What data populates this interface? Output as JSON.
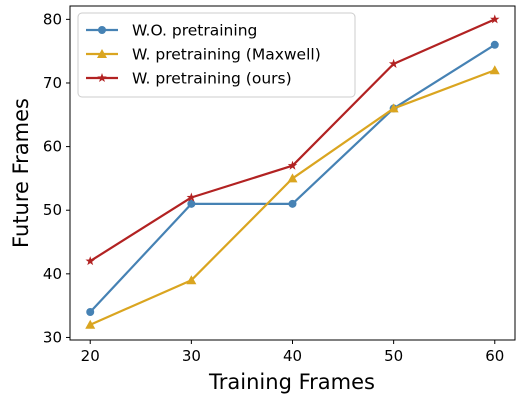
{
  "chart_data": {
    "type": "line",
    "title": "",
    "xlabel": "Training Frames",
    "ylabel": "Future Frames",
    "x": [
      20,
      30,
      40,
      50,
      60
    ],
    "xticks": [
      "20",
      "30",
      "40",
      "50",
      "60"
    ],
    "yticks": [
      "30",
      "40",
      "50",
      "60",
      "70",
      "80"
    ],
    "xlim": [
      18,
      62
    ],
    "ylim": [
      29.6,
      82.1
    ],
    "grid": false,
    "legend_position": "top-left",
    "series": [
      {
        "name": "W.O. pretraining",
        "values": [
          34,
          51,
          51,
          66,
          76
        ],
        "color": "#4682b4",
        "marker": "circle"
      },
      {
        "name": "W. pretraining (Maxwell)",
        "values": [
          32,
          39,
          55,
          66,
          72
        ],
        "color": "#daa520",
        "marker": "triangle"
      },
      {
        "name": "W. pretraining (ours)",
        "values": [
          42,
          52,
          57,
          73,
          80
        ],
        "color": "#b22222",
        "marker": "star"
      }
    ]
  }
}
